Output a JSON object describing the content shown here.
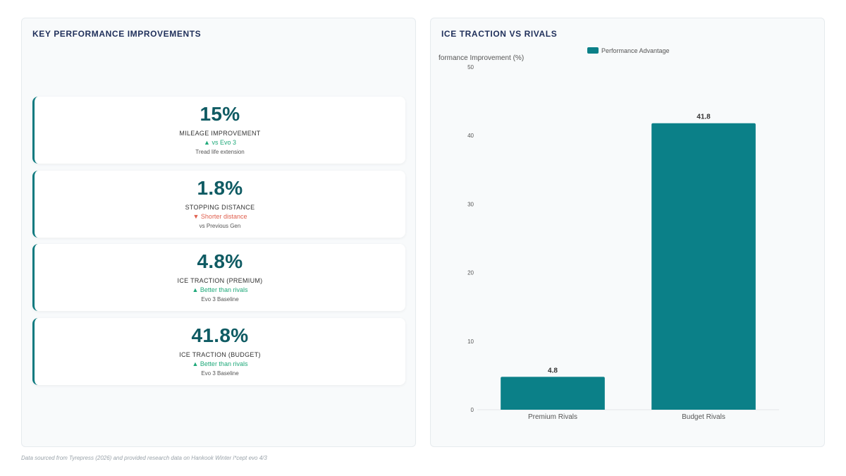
{
  "left_panel": {
    "title": "KEY PERFORMANCE IMPROVEMENTS",
    "cards": [
      {
        "value": "15%",
        "label": "MILEAGE IMPROVEMENT",
        "change": "▲ vs Evo 3",
        "direction": "up",
        "sub": "Tread life extension"
      },
      {
        "value": "1.8%",
        "label": "STOPPING DISTANCE",
        "change": "▼ Shorter distance",
        "direction": "down",
        "sub": "vs Previous Gen"
      },
      {
        "value": "4.8%",
        "label": "ICE TRACTION (PREMIUM)",
        "change": "▲ Better than rivals",
        "direction": "up",
        "sub": "Evo 3 Baseline"
      },
      {
        "value": "41.8%",
        "label": "ICE TRACTION (BUDGET)",
        "change": "▲ Better than rivals",
        "direction": "up",
        "sub": "Evo 3 Baseline"
      }
    ]
  },
  "right_panel": {
    "title": "ICE TRACTION VS RIVALS"
  },
  "chart_data": {
    "type": "bar",
    "categories": [
      "Premium Rivals",
      "Budget Rivals"
    ],
    "series": [
      {
        "name": "Performance Advantage",
        "values": [
          4.8,
          41.8
        ]
      }
    ],
    "ylabel": "Performance Improvement (%)",
    "ylabel_visible": "formance Improvement (%)",
    "xlabel": "",
    "ylim": [
      0,
      50
    ],
    "yticks": [
      0,
      10,
      20,
      30,
      40,
      50
    ],
    "data_labels": true,
    "grid": false,
    "legend": "top-center",
    "color": "#0b8088"
  },
  "footer": "Data sourced from Tyrepress (2026) and provided research data on Hankook Winter i*cept evo 4/3"
}
